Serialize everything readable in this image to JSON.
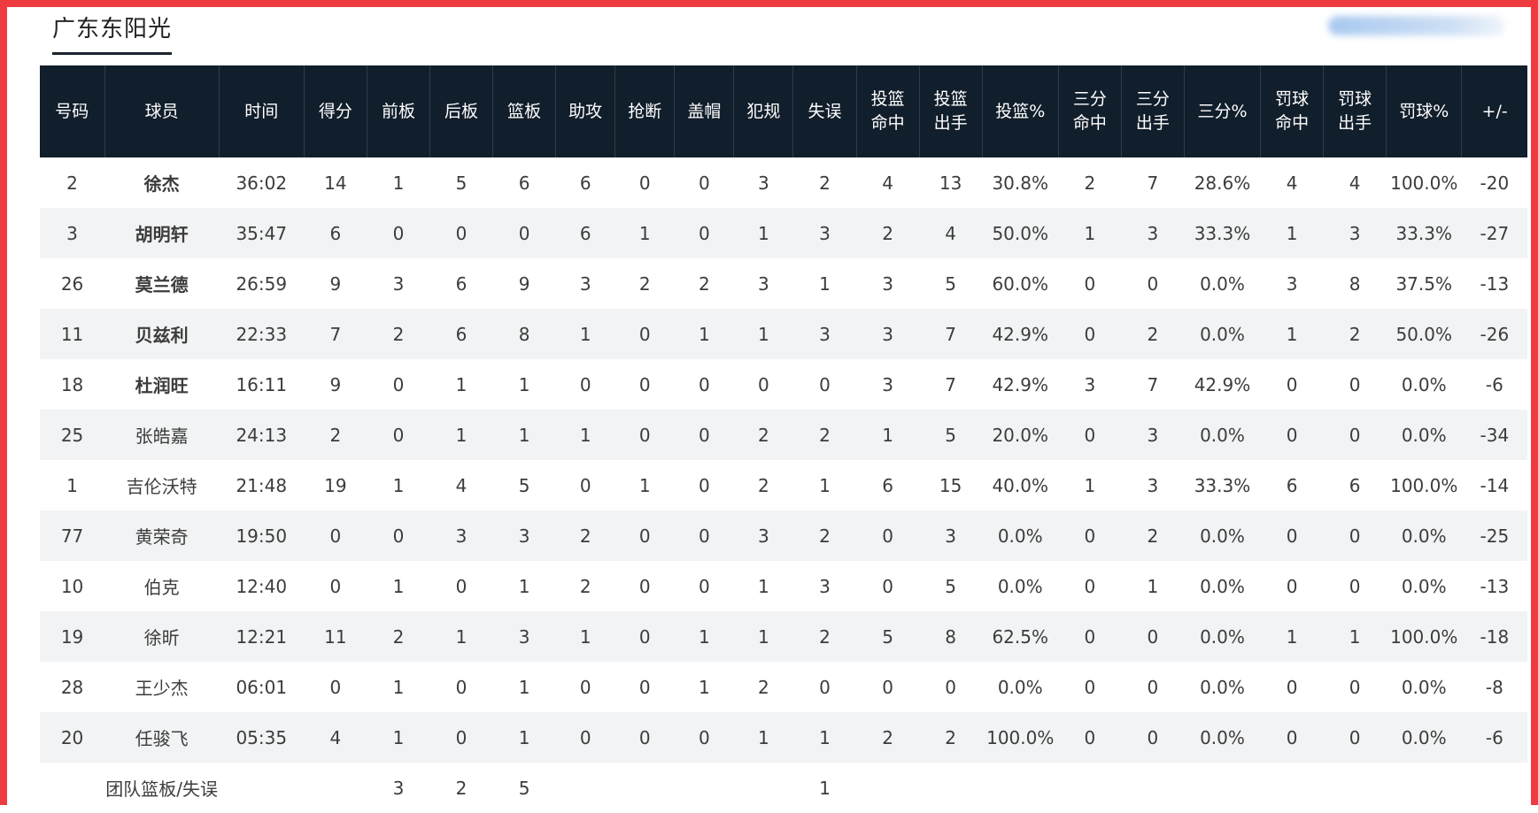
{
  "team_name": "广东东阳光",
  "headers": [
    "号码",
    "球员",
    "时间",
    "得分",
    "前板",
    "后板",
    "篮板",
    "助攻",
    "抢断",
    "盖帽",
    "犯规",
    "失误",
    "投篮命中",
    "投篮出手",
    "投篮%",
    "三分命中",
    "三分出手",
    "三分%",
    "罚球命中",
    "罚球出手",
    "罚球%",
    "+/-"
  ],
  "players": [
    [
      "2",
      "徐杰",
      "36:02",
      "14",
      "1",
      "5",
      "6",
      "6",
      "0",
      "0",
      "3",
      "2",
      "4",
      "13",
      "30.8%",
      "2",
      "7",
      "28.6%",
      "4",
      "4",
      "100.0%",
      "-20"
    ],
    [
      "3",
      "胡明轩",
      "35:47",
      "6",
      "0",
      "0",
      "0",
      "6",
      "1",
      "0",
      "1",
      "3",
      "2",
      "4",
      "50.0%",
      "1",
      "3",
      "33.3%",
      "1",
      "3",
      "33.3%",
      "-27"
    ],
    [
      "26",
      "莫兰德",
      "26:59",
      "9",
      "3",
      "6",
      "9",
      "3",
      "2",
      "2",
      "3",
      "1",
      "3",
      "5",
      "60.0%",
      "0",
      "0",
      "0.0%",
      "3",
      "8",
      "37.5%",
      "-13"
    ],
    [
      "11",
      "贝兹利",
      "22:33",
      "7",
      "2",
      "6",
      "8",
      "1",
      "0",
      "1",
      "1",
      "3",
      "3",
      "7",
      "42.9%",
      "0",
      "2",
      "0.0%",
      "1",
      "2",
      "50.0%",
      "-26"
    ],
    [
      "18",
      "杜润旺",
      "16:11",
      "9",
      "0",
      "1",
      "1",
      "0",
      "0",
      "0",
      "0",
      "0",
      "3",
      "7",
      "42.9%",
      "3",
      "7",
      "42.9%",
      "0",
      "0",
      "0.0%",
      "-6"
    ],
    [
      "25",
      "张皓嘉",
      "24:13",
      "2",
      "0",
      "1",
      "1",
      "1",
      "0",
      "0",
      "2",
      "2",
      "1",
      "5",
      "20.0%",
      "0",
      "3",
      "0.0%",
      "0",
      "0",
      "0.0%",
      "-34"
    ],
    [
      "1",
      "吉伦沃特",
      "21:48",
      "19",
      "1",
      "4",
      "5",
      "0",
      "1",
      "0",
      "2",
      "1",
      "6",
      "15",
      "40.0%",
      "1",
      "3",
      "33.3%",
      "6",
      "6",
      "100.0%",
      "-14"
    ],
    [
      "77",
      "黄荣奇",
      "19:50",
      "0",
      "0",
      "3",
      "3",
      "2",
      "0",
      "0",
      "3",
      "2",
      "0",
      "3",
      "0.0%",
      "0",
      "2",
      "0.0%",
      "0",
      "0",
      "0.0%",
      "-25"
    ],
    [
      "10",
      "伯克",
      "12:40",
      "0",
      "1",
      "0",
      "1",
      "2",
      "0",
      "0",
      "1",
      "3",
      "0",
      "5",
      "0.0%",
      "0",
      "1",
      "0.0%",
      "0",
      "0",
      "0.0%",
      "-13"
    ],
    [
      "19",
      "徐昕",
      "12:21",
      "11",
      "2",
      "1",
      "3",
      "1",
      "0",
      "1",
      "1",
      "2",
      "5",
      "8",
      "62.5%",
      "0",
      "0",
      "0.0%",
      "1",
      "1",
      "100.0%",
      "-18"
    ],
    [
      "28",
      "王少杰",
      "06:01",
      "0",
      "1",
      "0",
      "1",
      "0",
      "0",
      "1",
      "2",
      "0",
      "0",
      "0",
      "0.0%",
      "0",
      "0",
      "0.0%",
      "0",
      "0",
      "0.0%",
      "-8"
    ],
    [
      "20",
      "任骏飞",
      "05:35",
      "4",
      "1",
      "0",
      "1",
      "0",
      "0",
      "0",
      "1",
      "1",
      "2",
      "2",
      "100.0%",
      "0",
      "0",
      "0.0%",
      "0",
      "0",
      "0.0%",
      "-6"
    ]
  ],
  "starter_count": 5,
  "team_row": {
    "label": "团队篮板/失误",
    "offensive_rebounds": "3",
    "defensive_rebounds": "2",
    "rebounds": "5",
    "turnovers": "1"
  },
  "colors": {
    "header_bg": "#111e2b",
    "frame_border": "#ee3b3f",
    "stripe_bg": "#f2f3f4"
  }
}
